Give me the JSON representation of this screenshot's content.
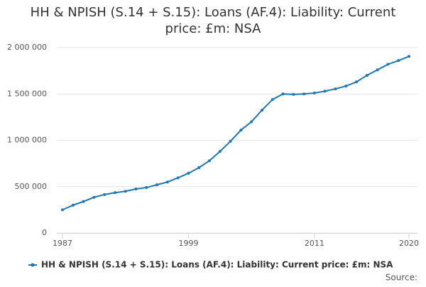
{
  "chart_data": {
    "type": "line",
    "title": "HH & NPISH (S.14 + S.15): Loans (AF.4): Liability: Current price: £m: NSA",
    "x": [
      1987,
      1988,
      1989,
      1990,
      1991,
      1992,
      1993,
      1994,
      1995,
      1996,
      1997,
      1998,
      1999,
      2000,
      2001,
      2002,
      2003,
      2004,
      2005,
      2006,
      2007,
      2008,
      2009,
      2010,
      2011,
      2012,
      2013,
      2014,
      2015,
      2016,
      2017,
      2018,
      2019,
      2020
    ],
    "series": [
      {
        "name": "HH & NPISH (S.14 + S.15): Loans (AF.4): Liability: Current price: £m: NSA",
        "color": "#1f77b4",
        "values": [
          250000,
          300000,
          340000,
          385000,
          415000,
          435000,
          450000,
          475000,
          490000,
          520000,
          550000,
          595000,
          645000,
          705000,
          780000,
          880000,
          990000,
          1110000,
          1200000,
          1325000,
          1440000,
          1500000,
          1495000,
          1500000,
          1510000,
          1530000,
          1555000,
          1585000,
          1630000,
          1700000,
          1760000,
          1820000,
          1860000,
          1905000
        ]
      }
    ],
    "xlim": [
      1987,
      2020
    ],
    "xticks": [
      1987,
      1999,
      2011,
      2020
    ],
    "ylim": [
      0,
      2000000
    ],
    "yticks": [
      0,
      {
        "value": 500000,
        "label": "500 000"
      },
      {
        "value": 1000000,
        "label": "1 000 000"
      },
      {
        "value": 1500000,
        "label": "1 500 000"
      },
      {
        "value": 2000000,
        "label": "2 000 000"
      }
    ],
    "grid": true,
    "legend": "bottom",
    "source": "Source:"
  }
}
